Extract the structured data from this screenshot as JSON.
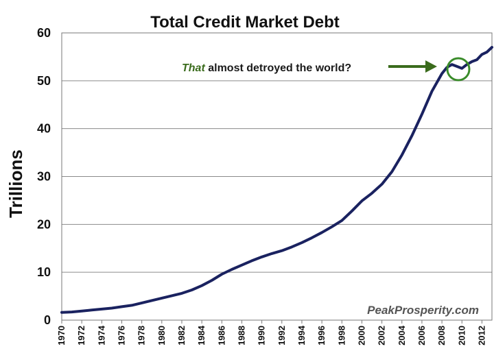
{
  "chart_data": {
    "type": "line",
    "title": "Total Credit Market Debt",
    "ylabel": "Trillions",
    "xlabel": "",
    "xlim": [
      1970,
      2013
    ],
    "ylim": [
      0,
      60
    ],
    "y_ticks": [
      "0",
      "10",
      "20",
      "30",
      "40",
      "50",
      "60"
    ],
    "x_ticks": [
      "1970",
      "1972",
      "1974",
      "1976",
      "1978",
      "1980",
      "1982",
      "1984",
      "1986",
      "1988",
      "1990",
      "1992",
      "1994",
      "1996",
      "1998",
      "2000",
      "2002",
      "2004",
      "2006",
      "2008",
      "2010",
      "2012"
    ],
    "grid": "horizontal",
    "line_color": "#1a2260",
    "series": [
      {
        "x": [
          1970,
          1971,
          1972,
          1973,
          1974,
          1975,
          1976,
          1977,
          1978,
          1979,
          1980,
          1981,
          1982,
          1983,
          1984,
          1985,
          1986,
          1987,
          1988,
          1989,
          1990,
          1991,
          1992,
          1993,
          1994,
          1995,
          1996,
          1997,
          1998,
          1999,
          2000,
          2001,
          2002,
          2003,
          2004,
          2005,
          2006,
          2007,
          2008,
          2008.5,
          2009,
          2009.5,
          2010,
          2010.5,
          2011,
          2011.5,
          2012,
          2012.5,
          2013
        ],
        "y": [
          1.6,
          1.7,
          1.9,
          2.1,
          2.3,
          2.5,
          2.8,
          3.1,
          3.6,
          4.1,
          4.6,
          5.1,
          5.6,
          6.3,
          7.2,
          8.3,
          9.6,
          10.6,
          11.5,
          12.4,
          13.2,
          13.9,
          14.5,
          15.3,
          16.2,
          17.2,
          18.3,
          19.5,
          20.8,
          22.8,
          24.9,
          26.5,
          28.4,
          31.0,
          34.5,
          38.5,
          43.0,
          47.8,
          51.5,
          52.8,
          53.4,
          53.0,
          52.6,
          53.4,
          54.0,
          54.4,
          55.5,
          56.0,
          57.0
        ]
      }
    ],
    "annotation": {
      "emphasis": "That",
      "text": " almost detroyed the world?",
      "color": "#3a6b1c"
    },
    "source_watermark": "PeakProsperity.com"
  }
}
